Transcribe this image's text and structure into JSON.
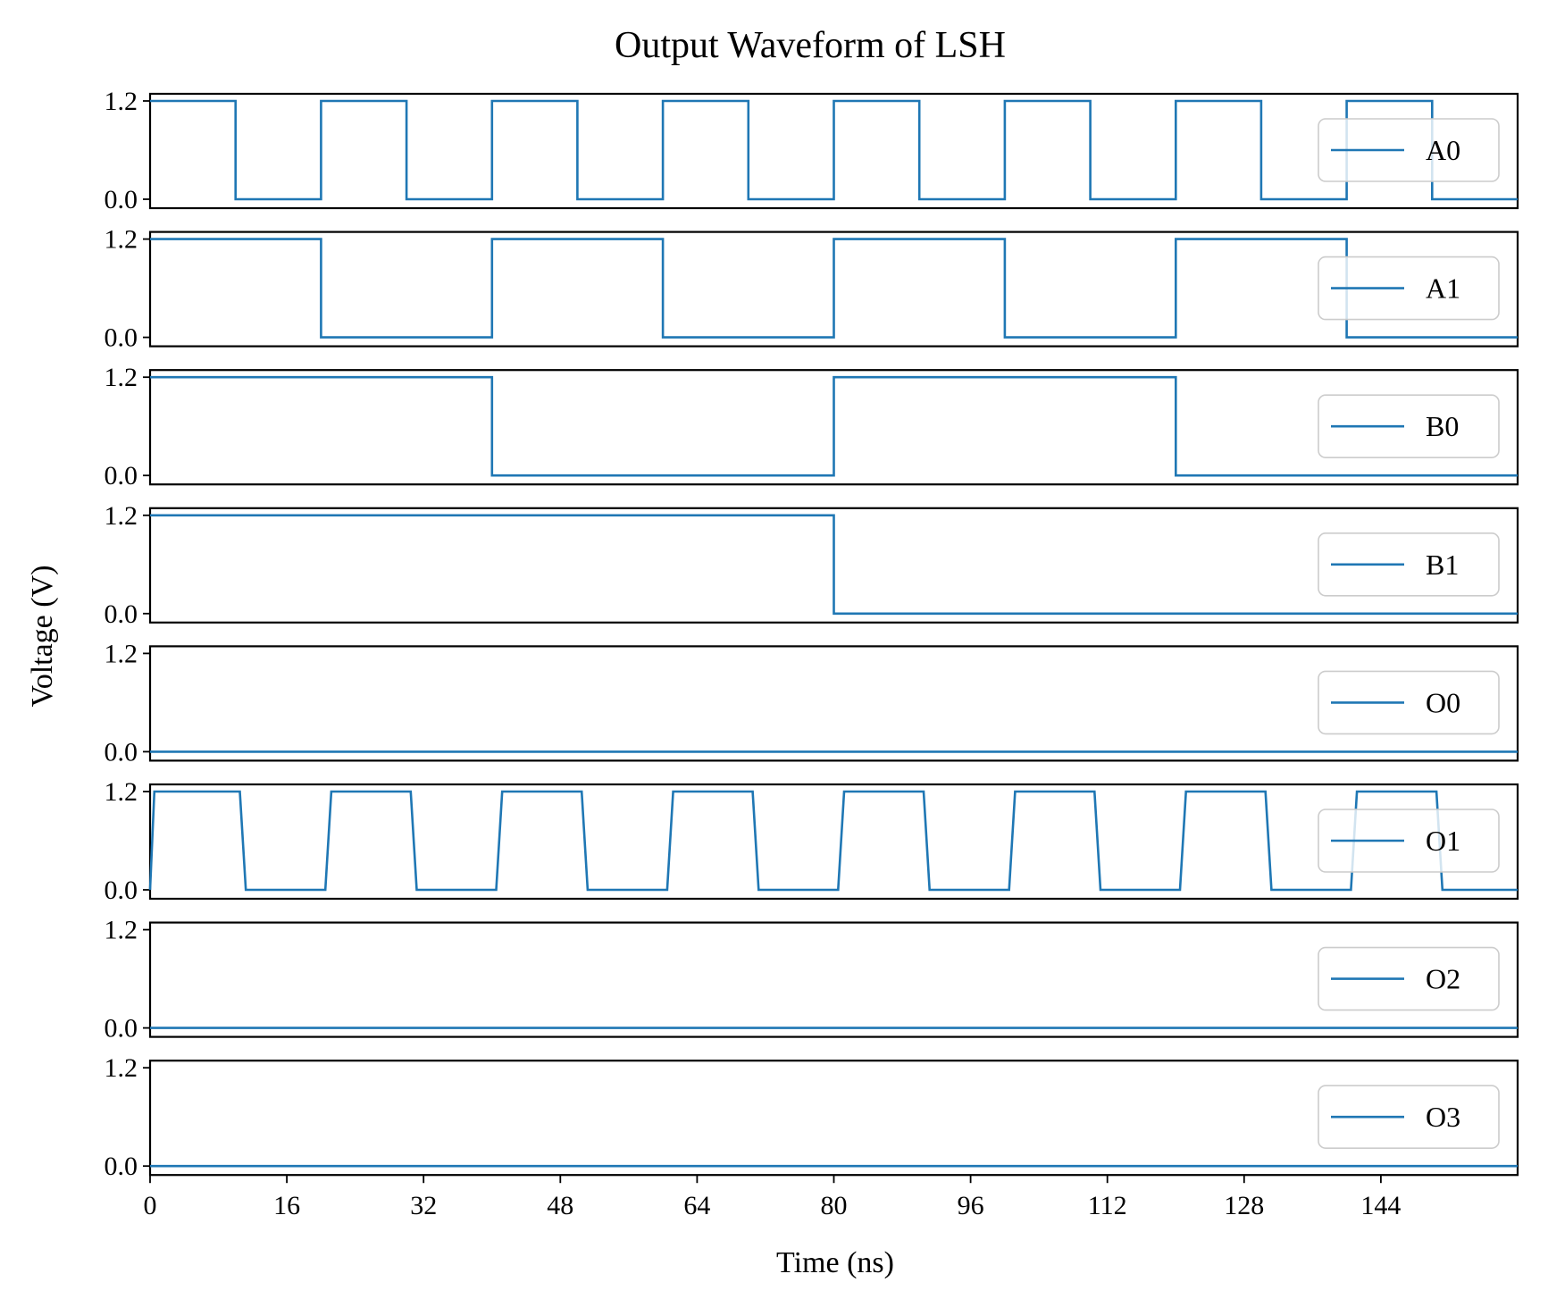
{
  "chart_data": {
    "type": "line",
    "title": "Output Waveform of LSH",
    "xlabel": "Time (ns)",
    "ylabel": "Voltage (V)",
    "xlim": [
      0,
      160
    ],
    "ylim": [
      0,
      1.2
    ],
    "x_ticks": [
      "0",
      "16",
      "32",
      "48",
      "64",
      "80",
      "96",
      "112",
      "128",
      "144"
    ],
    "y_ticks": [
      "0.0",
      "1.2"
    ],
    "legend_position": "right",
    "grid": false,
    "line_color": "#1f77b4",
    "series": [
      {
        "name": "A0",
        "x": [
          0,
          10,
          10,
          20,
          20,
          30,
          30,
          40,
          40,
          50,
          50,
          60,
          60,
          70,
          70,
          80,
          80,
          90,
          90,
          100,
          100,
          110,
          110,
          120,
          120,
          130,
          130,
          140,
          140,
          150,
          150,
          160
        ],
        "y": [
          1.2,
          1.2,
          0,
          0,
          1.2,
          1.2,
          0,
          0,
          1.2,
          1.2,
          0,
          0,
          1.2,
          1.2,
          0,
          0,
          1.2,
          1.2,
          0,
          0,
          1.2,
          1.2,
          0,
          0,
          1.2,
          1.2,
          0,
          0,
          1.2,
          1.2,
          0,
          0
        ]
      },
      {
        "name": "A1",
        "x": [
          0,
          20,
          20,
          40,
          40,
          60,
          60,
          80,
          80,
          100,
          100,
          120,
          120,
          140,
          140,
          160
        ],
        "y": [
          1.2,
          1.2,
          0,
          0,
          1.2,
          1.2,
          0,
          0,
          1.2,
          1.2,
          0,
          0,
          1.2,
          1.2,
          0,
          0
        ]
      },
      {
        "name": "B0",
        "x": [
          0,
          40,
          40,
          80,
          80,
          120,
          120,
          160
        ],
        "y": [
          1.2,
          1.2,
          0,
          0,
          1.2,
          1.2,
          0,
          0
        ]
      },
      {
        "name": "B1",
        "x": [
          0,
          80,
          80,
          160
        ],
        "y": [
          1.2,
          1.2,
          0,
          0
        ]
      },
      {
        "name": "O0",
        "x": [
          0,
          160
        ],
        "y": [
          0,
          0
        ]
      },
      {
        "name": "O1",
        "x": [
          0,
          0.5,
          10.5,
          11.2,
          20.5,
          21.2,
          30.5,
          31.2,
          40.5,
          41.2,
          50.5,
          51.2,
          60.5,
          61.2,
          70.5,
          71.2,
          80.5,
          81.2,
          90.5,
          91.2,
          100.5,
          101.2,
          110.5,
          111.2,
          120.5,
          121.2,
          130.5,
          131.2,
          140.5,
          141.2,
          150.5,
          151.2,
          160
        ],
        "y": [
          0,
          1.2,
          1.2,
          0,
          0,
          1.2,
          1.2,
          0,
          0,
          1.2,
          1.2,
          0,
          0,
          1.2,
          1.2,
          0,
          0,
          1.2,
          1.2,
          0,
          0,
          1.2,
          1.2,
          0,
          0,
          1.2,
          1.2,
          0,
          0,
          1.2,
          1.2,
          0,
          0
        ]
      },
      {
        "name": "O2",
        "x": [
          0,
          160
        ],
        "y": [
          0,
          0
        ]
      },
      {
        "name": "O3",
        "x": [
          0,
          160
        ],
        "y": [
          0,
          0
        ]
      }
    ]
  }
}
